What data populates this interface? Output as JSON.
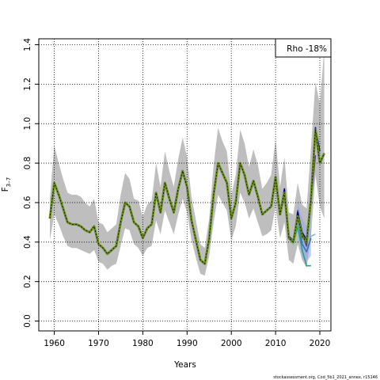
{
  "chart_data": {
    "type": "line",
    "xlabel": "Years",
    "ylabel_main": "F",
    "ylabel_sub": "3–7",
    "xlim": [
      1956.5,
      2022.5
    ],
    "ylim": [
      -0.05,
      1.43
    ],
    "x_ticks": [
      1960,
      1970,
      1980,
      1990,
      2000,
      2010,
      2020
    ],
    "y_ticks": [
      "0.0",
      "0.2",
      "0.4",
      "0.6",
      "0.8",
      "1.0",
      "1.2",
      "1.4"
    ],
    "grid": true,
    "annotation": "Rho -18%",
    "footer": "stockassessment.org, Cod_5b1_2021_annex, r15146",
    "colors": {
      "base": "#6b8e23",
      "ci": "#bebebe",
      "peel1": "#00008b",
      "peel2": "#5b3a91",
      "peel3": "#3f6fbf",
      "peel4": "#7fb3d5",
      "peel5": "#2a9d8f",
      "peel6": "#5fcf80"
    },
    "base": {
      "x": [
        1959,
        1960,
        1961,
        1962,
        1963,
        1964,
        1965,
        1966,
        1967,
        1968,
        1969,
        1970,
        1971,
        1972,
        1973,
        1974,
        1975,
        1976,
        1977,
        1978,
        1979,
        1980,
        1981,
        1982,
        1983,
        1984,
        1985,
        1986,
        1987,
        1988,
        1989,
        1990,
        1991,
        1992,
        1993,
        1994,
        1995,
        1996,
        1997,
        1998,
        1999,
        2000,
        2001,
        2002,
        2003,
        2004,
        2005,
        2006,
        2007,
        2008,
        2009,
        2010,
        2011,
        2012,
        2013,
        2014,
        2015,
        2016,
        2017,
        2018,
        2019,
        2020,
        2021
      ],
      "y": [
        0.52,
        0.7,
        0.64,
        0.57,
        0.5,
        0.49,
        0.49,
        0.48,
        0.46,
        0.45,
        0.48,
        0.39,
        0.37,
        0.34,
        0.36,
        0.38,
        0.5,
        0.6,
        0.58,
        0.5,
        0.48,
        0.42,
        0.47,
        0.49,
        0.65,
        0.55,
        0.7,
        0.62,
        0.55,
        0.67,
        0.76,
        0.68,
        0.51,
        0.41,
        0.31,
        0.29,
        0.42,
        0.64,
        0.8,
        0.75,
        0.7,
        0.52,
        0.6,
        0.8,
        0.74,
        0.64,
        0.71,
        0.63,
        0.54,
        0.56,
        0.58,
        0.73,
        0.54,
        0.65,
        0.42,
        0.4,
        0.53,
        0.43,
        0.4,
        0.62,
        0.97,
        0.8,
        0.85
      ],
      "upper": [
        0.62,
        0.89,
        0.8,
        0.72,
        0.65,
        0.64,
        0.64,
        0.63,
        0.6,
        0.58,
        0.62,
        0.5,
        0.49,
        0.45,
        0.47,
        0.49,
        0.64,
        0.75,
        0.72,
        0.62,
        0.61,
        0.53,
        0.59,
        0.61,
        0.8,
        0.68,
        0.86,
        0.76,
        0.68,
        0.82,
        0.93,
        0.83,
        0.63,
        0.51,
        0.39,
        0.37,
        0.52,
        0.79,
        0.98,
        0.91,
        0.86,
        0.64,
        0.74,
        0.97,
        0.9,
        0.78,
        0.87,
        0.79,
        0.67,
        0.7,
        0.74,
        0.92,
        0.68,
        0.83,
        0.55,
        0.54,
        0.7,
        0.59,
        0.57,
        0.88,
        1.21,
        1.1,
        1.38
      ],
      "lower": [
        0.41,
        0.54,
        0.49,
        0.43,
        0.38,
        0.37,
        0.37,
        0.36,
        0.35,
        0.34,
        0.36,
        0.3,
        0.29,
        0.26,
        0.28,
        0.29,
        0.38,
        0.47,
        0.46,
        0.39,
        0.37,
        0.33,
        0.37,
        0.38,
        0.51,
        0.44,
        0.56,
        0.5,
        0.44,
        0.54,
        0.62,
        0.55,
        0.41,
        0.32,
        0.24,
        0.23,
        0.33,
        0.5,
        0.64,
        0.6,
        0.56,
        0.41,
        0.48,
        0.65,
        0.6,
        0.52,
        0.57,
        0.5,
        0.43,
        0.44,
        0.46,
        0.58,
        0.42,
        0.5,
        0.31,
        0.29,
        0.39,
        0.31,
        0.27,
        0.43,
        0.74,
        0.58,
        0.52
      ]
    },
    "peels": [
      {
        "color_key": "peel1",
        "x": [
          2009,
          2010,
          2011,
          2012,
          2013,
          2014,
          2015,
          2016,
          2017,
          2018,
          2019,
          2020
        ],
        "y": [
          0.58,
          0.73,
          0.55,
          0.67,
          0.43,
          0.4,
          0.55,
          0.45,
          0.41,
          0.63,
          0.98,
          0.86
        ]
      },
      {
        "color_key": "peel2",
        "x": [
          2009,
          2010,
          2011,
          2012,
          2013,
          2014,
          2015,
          2016,
          2017,
          2018,
          2019
        ],
        "y": [
          0.58,
          0.72,
          0.55,
          0.66,
          0.43,
          0.4,
          0.56,
          0.44,
          0.38,
          0.6,
          0.84
        ]
      },
      {
        "color_key": "peel3",
        "x": [
          2009,
          2010,
          2011,
          2012,
          2013,
          2014,
          2015,
          2016,
          2017,
          2018
        ],
        "y": [
          0.58,
          0.72,
          0.55,
          0.66,
          0.43,
          0.41,
          0.53,
          0.39,
          0.35,
          0.42
        ]
      },
      {
        "color_key": "peel4",
        "x": [
          2009,
          2010,
          2011,
          2012,
          2013,
          2014,
          2015,
          2016,
          2017,
          2018,
          2019
        ],
        "y": [
          0.58,
          0.72,
          0.55,
          0.66,
          0.43,
          0.41,
          0.5,
          0.4,
          0.36,
          0.43,
          0.44
        ]
      },
      {
        "color_key": "peel5",
        "x": [
          2009,
          2010,
          2011,
          2012,
          2013,
          2014,
          2015,
          2016,
          2017,
          2018
        ],
        "y": [
          0.58,
          0.72,
          0.55,
          0.65,
          0.43,
          0.4,
          0.48,
          0.36,
          0.28,
          0.28
        ]
      },
      {
        "color_key": "peel6",
        "x": [
          2009,
          2010,
          2011,
          2012,
          2013,
          2014,
          2015,
          2016
        ],
        "y": [
          0.58,
          0.72,
          0.54,
          0.64,
          0.42,
          0.39,
          0.47,
          0.4
        ]
      }
    ],
    "peel_bands": [
      {
        "x": [
          2015,
          2016,
          2017,
          2018
        ],
        "upper": [
          0.6,
          0.52,
          0.48,
          0.55
        ],
        "lower": [
          0.45,
          0.32,
          0.3,
          0.33
        ]
      }
    ]
  }
}
